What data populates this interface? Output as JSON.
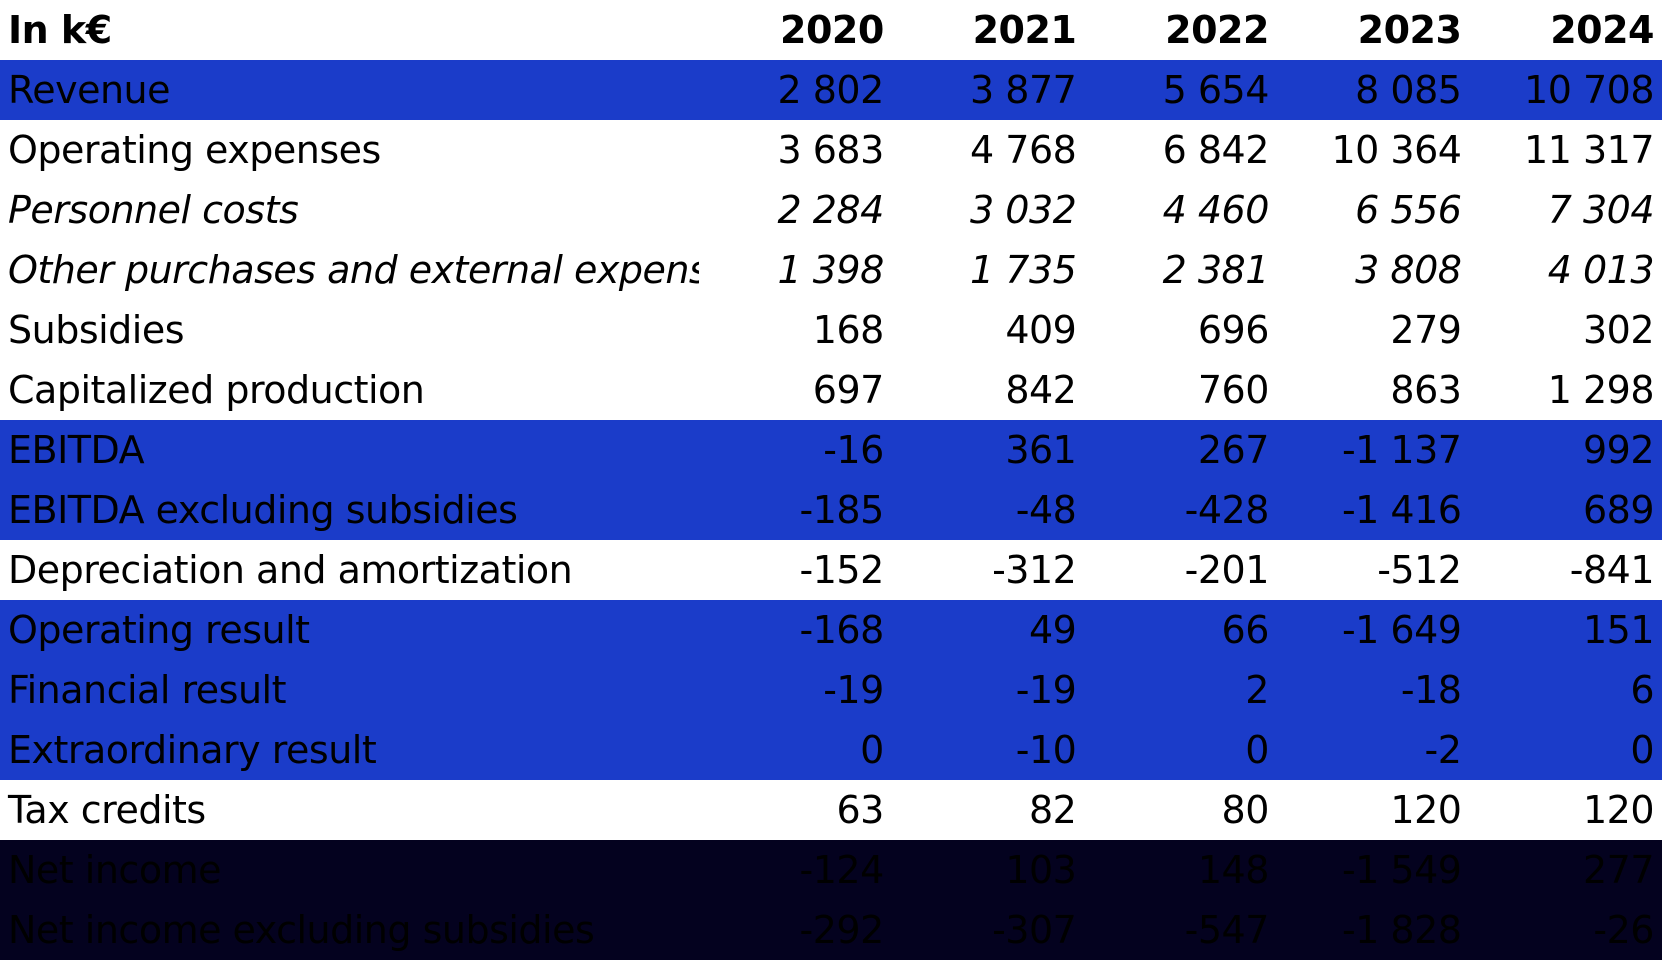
{
  "table": {
    "unit_label": "In k€",
    "years": [
      "2020",
      "2021",
      "2022",
      "2023",
      "2024"
    ],
    "rows": [
      {
        "label": "Revenue",
        "style": "hl-blue",
        "values": [
          "2 802",
          "3 877",
          "5 654",
          "8 085",
          "10 708"
        ]
      },
      {
        "label": "Operating expenses",
        "style": "plain",
        "values": [
          "3 683",
          "4 768",
          "6 842",
          "10 364",
          "11 317"
        ]
      },
      {
        "label": "Personnel costs",
        "style": "plain italic",
        "values": [
          "2 284",
          "3 032",
          "4 460",
          "6 556",
          "7 304"
        ]
      },
      {
        "label": "Other purchases and external expenses",
        "style": "plain italic",
        "values": [
          "1 398",
          "1 735",
          "2 381",
          "3 808",
          "4 013"
        ]
      },
      {
        "label": "Subsidies",
        "style": "plain",
        "values": [
          "168",
          "409",
          "696",
          "279",
          "302"
        ]
      },
      {
        "label": "Capitalized production",
        "style": "plain",
        "values": [
          "697",
          "842",
          "760",
          "863",
          "1 298"
        ]
      },
      {
        "label": "EBITDA",
        "style": "hl-blue",
        "values": [
          "-16",
          "361",
          "267",
          "-1 137",
          "992"
        ]
      },
      {
        "label": "EBITDA excluding subsidies",
        "style": "hl-blue",
        "values": [
          "-185",
          "-48",
          "-428",
          "-1 416",
          "689"
        ]
      },
      {
        "label": "Depreciation and amortization",
        "style": "plain",
        "values": [
          "-152",
          "-312",
          "-201",
          "-512",
          "-841"
        ]
      },
      {
        "label": "Operating result",
        "style": "hl-blue",
        "values": [
          "-168",
          "49",
          "66",
          "-1 649",
          "151"
        ]
      },
      {
        "label": "Financial result",
        "style": "hl-blue",
        "values": [
          "-19",
          "-19",
          "2",
          "-18",
          "6"
        ]
      },
      {
        "label": "Extraordinary result",
        "style": "hl-blue",
        "values": [
          "0",
          "-10",
          "0",
          "-2",
          "0"
        ]
      },
      {
        "label": "Tax credits",
        "style": "plain",
        "values": [
          "63",
          "82",
          "80",
          "120",
          "120"
        ]
      },
      {
        "label": "Net income",
        "style": "hl-dark",
        "values": [
          "-124",
          "103",
          "148",
          "-1 549",
          "277"
        ]
      },
      {
        "label": "Net income excluding subsidies",
        "style": "hl-dark",
        "values": [
          "-292",
          "-307",
          "-547",
          "-1 828",
          "-26"
        ]
      }
    ]
  },
  "colors": {
    "highlight_blue": "#1b3cc9",
    "highlight_dark": "#04021f",
    "text_default": "#000000",
    "text_on_highlight": "#ffffff"
  }
}
